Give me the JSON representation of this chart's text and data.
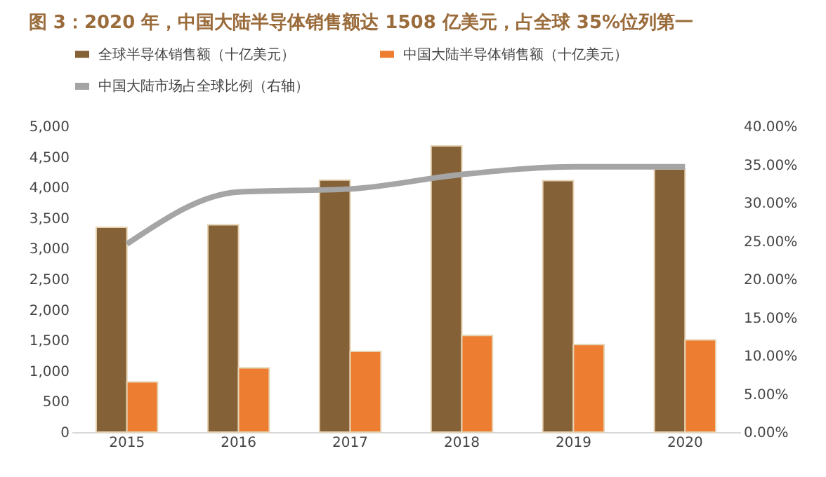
{
  "chart_data": {
    "type": "bar",
    "title": "图 3：2020 年，中国大陆半导体销售额达 1508 亿美元，占全球 35%位列第一",
    "categories": [
      "2015",
      "2016",
      "2017",
      "2018",
      "2019",
      "2020"
    ],
    "series": [
      {
        "name": "全球半导体销售额（十亿美元）",
        "color": "#846137",
        "values": [
          3350,
          3390,
          4120,
          4680,
          4110,
          4300
        ]
      },
      {
        "name": "中国大陆半导体销售额（十亿美元）",
        "color": "#ed7d31",
        "values": [
          820,
          1050,
          1320,
          1580,
          1430,
          1508
        ]
      },
      {
        "name": "中国大陆市场占全球比例（右轴）",
        "color": "#a5a5a5",
        "type": "line",
        "axis": "y2",
        "values": [
          24.6,
          31.4,
          31.8,
          33.7,
          34.7,
          34.7
        ]
      }
    ],
    "ylim": [
      0,
      5000
    ],
    "yticks": [
      0,
      500,
      {
        "value": 1000,
        "label": "1,000"
      },
      {
        "value": 1500,
        "label": "1,500"
      },
      {
        "value": 2000,
        "label": "2,000"
      },
      {
        "value": 2500,
        "label": "2,500"
      },
      {
        "value": 3000,
        "label": "3,000"
      },
      {
        "value": 3500,
        "label": "3,500"
      },
      {
        "value": 4000,
        "label": "4,000"
      },
      {
        "value": 4500,
        "label": "4,500"
      },
      {
        "value": 5000,
        "label": "5,000"
      }
    ],
    "y2lim": [
      0,
      40
    ],
    "y2ticks": [
      {
        "value": 0,
        "label": "0.00%"
      },
      {
        "value": 5,
        "label": "5.00%"
      },
      {
        "value": 10,
        "label": "10.00%"
      },
      {
        "value": 15,
        "label": "15.00%"
      },
      {
        "value": 20,
        "label": "20.00%"
      },
      {
        "value": 25,
        "label": "25.00%"
      },
      {
        "value": 30,
        "label": "30.00%"
      },
      {
        "value": 35,
        "label": "35.00%"
      },
      {
        "value": 40,
        "label": "40.00%"
      }
    ],
    "grid": false,
    "legend": "top",
    "marker": "none",
    "line_style": "solid"
  }
}
